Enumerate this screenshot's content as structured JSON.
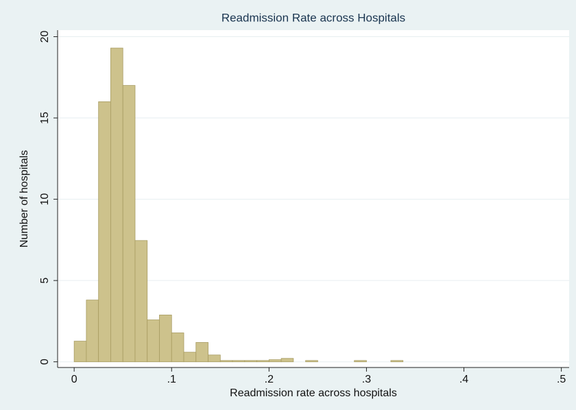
{
  "chart_data": {
    "type": "histogram",
    "title": "Readmission Rate across Hospitals",
    "x_label": "Readmission rate across hospitals",
    "y_label": "Number of hospitals",
    "bins": [
      0,
      0.0125,
      0.025,
      0.0375,
      0.05,
      0.0625,
      0.075,
      0.0875,
      0.1,
      0.1125,
      0.125,
      0.1375,
      0.15,
      0.1625,
      0.175,
      0.1875,
      0.2,
      0.2125,
      0.225,
      0.2375,
      0.25,
      0.2625,
      0.275,
      0.2875,
      0.3,
      0.3125,
      0.325,
      0.3375
    ],
    "values": [
      1.27,
      3.8,
      16.0,
      19.3,
      17.0,
      7.46,
      2.58,
      2.88,
      1.78,
      0.59,
      1.19,
      0.42,
      0.08,
      0.08,
      0.08,
      0.08,
      0.13,
      0.21,
      0,
      0.08,
      0,
      0,
      0,
      0.08,
      0,
      0,
      0.08
    ],
    "color": "#cdc28c",
    "edge_color": "#a89c62",
    "xlim": [
      -0.017,
      0.508
    ],
    "xticks": [
      0,
      {
        "value": 0.1,
        "label": ".1"
      },
      {
        "value": 0.2,
        "label": ".2"
      },
      {
        "value": 0.3,
        "label": ".3"
      },
      {
        "value": 0.4,
        "label": ".4"
      },
      {
        "value": 0.5,
        "label": ".5"
      }
    ],
    "ylim": [
      -0.35,
      20.4
    ],
    "yticks": [
      0,
      5,
      10,
      15,
      20
    ],
    "grid": true
  }
}
